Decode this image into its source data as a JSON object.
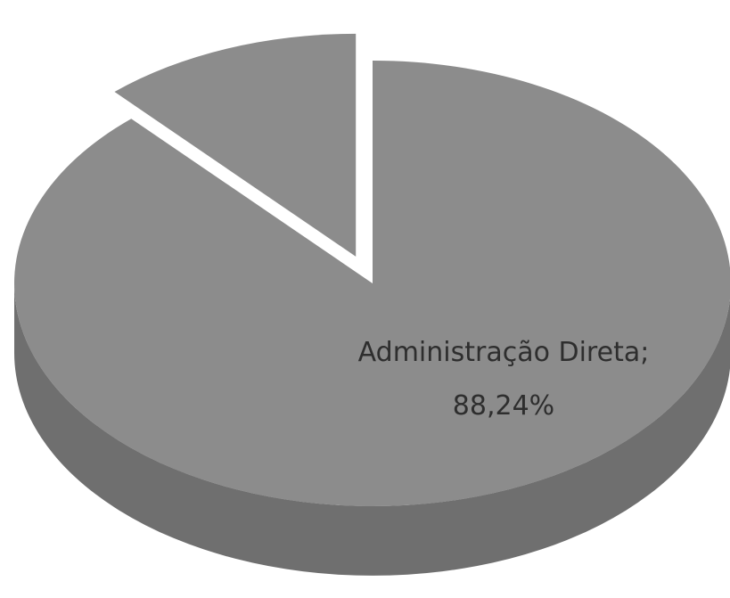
{
  "chart_data": {
    "type": "pie",
    "categories": [
      "Administração Direta",
      ""
    ],
    "values": [
      88.24,
      11.76
    ],
    "labels": [
      {
        "name": "Administração Direta;",
        "value": "88,24%"
      },
      {
        "name": "",
        "value": ""
      }
    ],
    "title": "",
    "legend": "none",
    "style": "3d-exploded"
  },
  "colors": {
    "background": "#ffffff",
    "slice_top": "#8c8c8c",
    "slice_side": "#6f6f6f",
    "slice_inner_side": "#2f2f2f",
    "label_text": "#2e2e2e"
  }
}
